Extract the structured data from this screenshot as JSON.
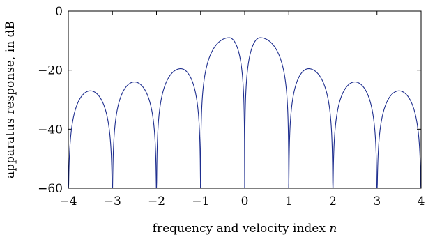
{
  "chart_data": {
    "type": "line",
    "title": "",
    "xlabel": "frequency and velocity index",
    "xlabel_var": "n",
    "ylabel": "apparatus response, in dB",
    "xlim": [
      -4,
      4
    ],
    "ylim": [
      -60,
      0
    ],
    "xticks": [
      -4,
      -3,
      -2,
      -1,
      0,
      1,
      2,
      3,
      4
    ],
    "yticks": [
      0,
      -20,
      -40,
      -60
    ],
    "xtick_labels": [
      "−4",
      "−3",
      "−2",
      "−1",
      "0",
      "1",
      "2",
      "3",
      "4"
    ],
    "ytick_labels": [
      "0",
      "−20",
      "−40",
      "−60"
    ],
    "grid": false,
    "series": [
      {
        "color": "#1f2f8f",
        "lobes": [
          {
            "x_start": -4,
            "x_end": -3,
            "peak_x": -3.5,
            "peak_y": -27
          },
          {
            "x_start": -3,
            "x_end": -2,
            "peak_x": -2.5,
            "peak_y": -24
          },
          {
            "x_start": -2,
            "x_end": -1,
            "peak_x": -1.45,
            "peak_y": -19.5
          },
          {
            "x_start": -1,
            "x_end": 0,
            "peak_x": -0.35,
            "peak_y": -9
          },
          {
            "x_start": 0,
            "x_end": 1,
            "peak_x": 0.35,
            "peak_y": -9
          },
          {
            "x_start": 1,
            "x_end": 2,
            "peak_x": 1.45,
            "peak_y": -19.5
          },
          {
            "x_start": 2,
            "x_end": 3,
            "peak_x": 2.5,
            "peak_y": -24
          },
          {
            "x_start": 3,
            "x_end": 4,
            "peak_x": 3.5,
            "peak_y": -27
          }
        ]
      }
    ]
  }
}
